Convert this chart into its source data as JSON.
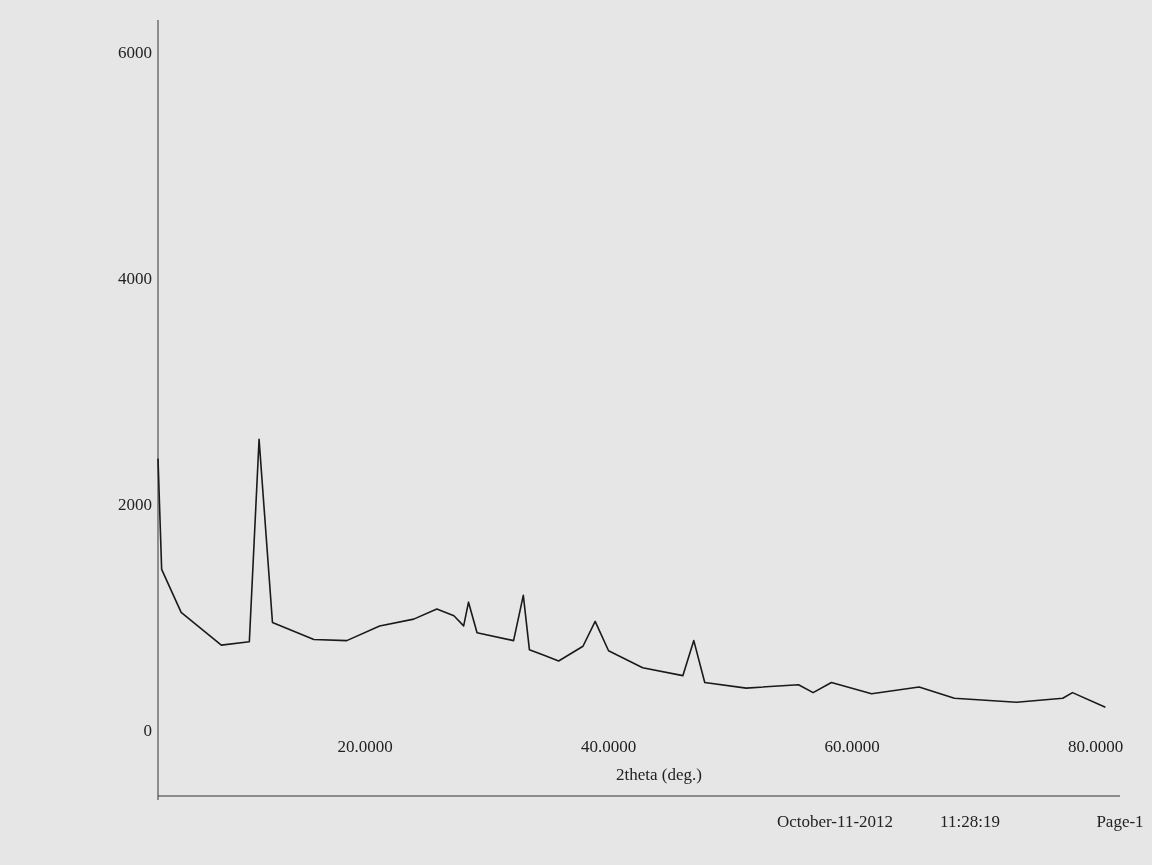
{
  "chart_data": {
    "type": "line",
    "xlabel": "2theta (deg.)",
    "x": [
      3,
      3.3,
      4.9,
      8.2,
      10.5,
      11.3,
      12.4,
      15.8,
      18.5,
      21.2,
      24,
      25.9,
      27.3,
      28.1,
      28.5,
      29.2,
      32.2,
      33,
      33.5,
      34.7,
      35.9,
      37.9,
      38.9,
      40,
      42.8,
      46.1,
      47,
      47.9,
      51.3,
      55.6,
      56.8,
      58.3,
      61.6,
      65.5,
      68.4,
      73.5,
      77.3,
      78.1,
      80.8
    ],
    "series": [
      {
        "color": "#1a1a1a",
        "values": [
          2420,
          1440,
          1060,
          770,
          800,
          2590,
          970,
          820,
          810,
          940,
          1000,
          1090,
          1030,
          940,
          1150,
          880,
          810,
          1210,
          730,
          680,
          630,
          760,
          980,
          720,
          570,
          500,
          810,
          440,
          390,
          420,
          350,
          440,
          340,
          400,
          300,
          265,
          300,
          350,
          220
        ]
      }
    ],
    "xlim": [
      3,
      82
    ],
    "xticks": [
      {
        "value": 20,
        "label": "20.0000"
      },
      {
        "value": 40,
        "label": "40.0000"
      },
      {
        "value": 60,
        "label": "60.0000"
      },
      {
        "value": 80,
        "label": "80.0000"
      }
    ],
    "ylim": [
      -600,
      6300
    ],
    "yticks": [
      0,
      2000,
      4000,
      6000
    ],
    "grid": false,
    "marker": "none",
    "line_style": "solid",
    "annotations": [
      "October-11-2012",
      "11:28:19",
      "Page-1"
    ]
  }
}
